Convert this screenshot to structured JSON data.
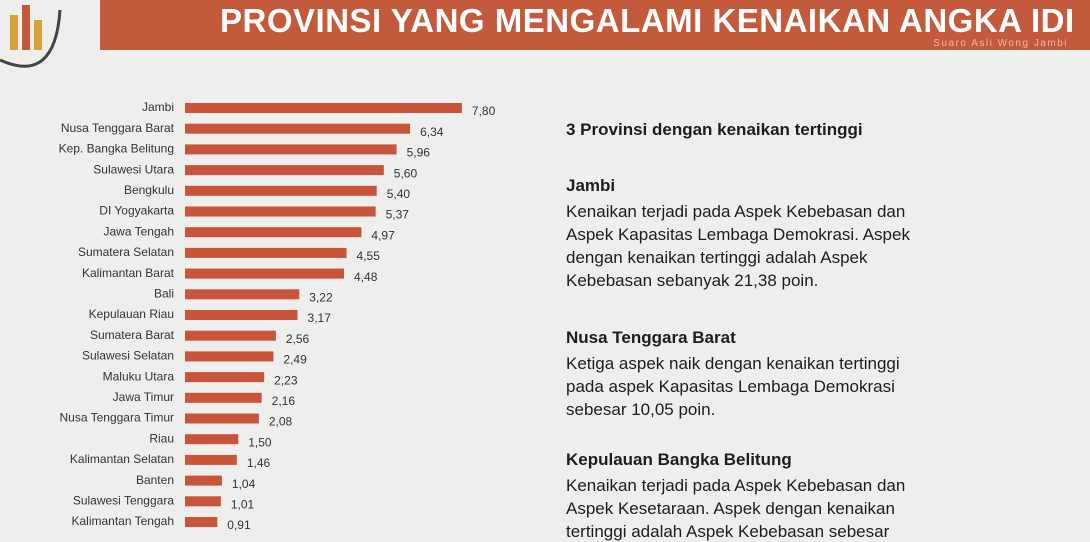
{
  "header": {
    "title": "PROVINSI YANG MENGALAMI KENAIKAN ANGKA IDI",
    "tagline": "Suaro Asli Wong Jambi"
  },
  "chart_data": {
    "type": "bar",
    "categories": [
      "Jambi",
      "Nusa Tenggara Barat",
      "Kep. Bangka Belitung",
      "Sulawesi Utara",
      "Bengkulu",
      "DI Yogyakarta",
      "Jawa Tengah",
      "Sumatera Selatan",
      "Kalimantan Barat",
      "Bali",
      "Kepulauan Riau",
      "Sumatera Barat",
      "Sulawesi Selatan",
      "Maluku Utara",
      "Jawa Timur",
      "Nusa Tenggara Timur",
      "Riau",
      "Kalimantan Selatan",
      "Banten",
      "Sulawesi Tenggara",
      "Kalimantan Tengah"
    ],
    "values": [
      7.8,
      6.34,
      5.96,
      5.6,
      5.4,
      5.37,
      4.97,
      4.55,
      4.48,
      3.22,
      3.17,
      2.56,
      2.49,
      2.23,
      2.16,
      2.08,
      1.5,
      1.46,
      1.04,
      1.01,
      0.91
    ],
    "value_labels": [
      "7,80",
      "6,34",
      "5,96",
      "5,60",
      "5,40",
      "5,37",
      "4,97",
      "4,55",
      "4,48",
      "3,22",
      "3,17",
      "2,56",
      "2,49",
      "2,23",
      "2,16",
      "2,08",
      "1,50",
      "1,46",
      "1,04",
      "1,01",
      "0,91"
    ],
    "color": "#c8553a"
  },
  "summary": {
    "heading": "3 Provinsi dengan kenaikan tertinggi",
    "sections": [
      {
        "title": "Jambi",
        "lines": [
          "Kenaikan terjadi pada Aspek Kebebasan dan",
          "Aspek Kapasitas Lembaga Demokrasi. Aspek",
          "dengan kenaikan tertinggi adalah Aspek",
          "Kebebasan sebanyak 21,38 poin."
        ]
      },
      {
        "title": "Nusa Tenggara Barat",
        "lines": [
          "Ketiga aspek naik dengan kenaikan tertinggi",
          "pada aspek Kapasitas Lembaga Demokrasi",
          "sebesar 10,05 poin."
        ]
      },
      {
        "title": "Kepulauan Bangka Belitung",
        "lines": [
          "Kenaikan terjadi pada Aspek Kebebasan dan",
          "Aspek Kesetaraan. Aspek dengan kenaikan",
          "tertinggi adalah Aspek Kebebasan sebesar"
        ]
      }
    ]
  }
}
